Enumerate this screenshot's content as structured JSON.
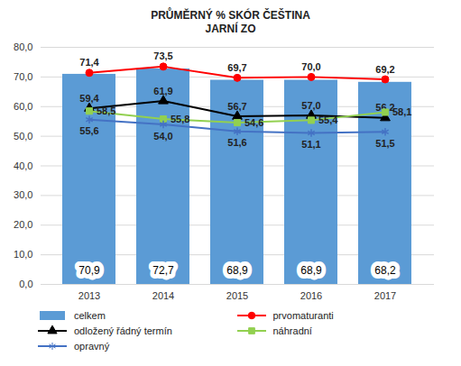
{
  "chart_data": {
    "type": "bar",
    "title": "PRŮMĚRNÝ % SKÓR ČEŠTINA",
    "subtitle": "JARNÍ ZO",
    "categories": [
      "2013",
      "2014",
      "2015",
      "2016",
      "2017"
    ],
    "series": [
      {
        "name": "celkem",
        "type": "bar",
        "color": "#5b9bd5",
        "values": [
          70.9,
          72.7,
          68.9,
          68.9,
          68.2
        ],
        "value_labels": [
          "70,9",
          "72,7",
          "68,9",
          "68,9",
          "68,2"
        ]
      },
      {
        "name": "prvomaturanti",
        "type": "line",
        "color": "#ff0000",
        "marker": "circle",
        "values": [
          71.4,
          73.5,
          69.7,
          70.0,
          69.2
        ],
        "value_labels": [
          "71,4",
          "73,5",
          "69,7",
          "70,0",
          "69,2"
        ]
      },
      {
        "name": "odložený řádný termín",
        "type": "line",
        "color": "#000000",
        "marker": "triangle",
        "values": [
          59.4,
          61.9,
          56.7,
          57.0,
          56.2
        ],
        "value_labels": [
          "59,4",
          "61,9",
          "56,7",
          "57,0",
          "56,2"
        ]
      },
      {
        "name": "náhradní",
        "type": "line",
        "color": "#92d050",
        "marker": "square",
        "values": [
          58.5,
          55.8,
          54.6,
          55.4,
          58.1
        ],
        "value_labels": [
          "58,5",
          "55,8",
          "54,6",
          "55,4",
          "58,1"
        ]
      },
      {
        "name": "opravný",
        "type": "line",
        "color": "#4472c4",
        "marker": "asterisk",
        "values": [
          55.6,
          54.0,
          51.6,
          51.1,
          51.5
        ],
        "value_labels": [
          "55,6",
          "54,0",
          "51,6",
          "51,1",
          "51,5"
        ]
      }
    ],
    "ylim": [
      0,
      80
    ],
    "yticks": [
      {
        "value": 0,
        "label": "0,0"
      },
      {
        "value": 10,
        "label": "10,0"
      },
      {
        "value": 20,
        "label": "20,0"
      },
      {
        "value": 30,
        "label": "30,0"
      },
      {
        "value": 40,
        "label": "40,0"
      },
      {
        "value": 50,
        "label": "50,0"
      },
      {
        "value": 60,
        "label": "60,0"
      },
      {
        "value": 70,
        "label": "70,0"
      },
      {
        "value": 80,
        "label": "80,0"
      }
    ],
    "grid": true,
    "data_labels": true,
    "legend": "bottom"
  }
}
